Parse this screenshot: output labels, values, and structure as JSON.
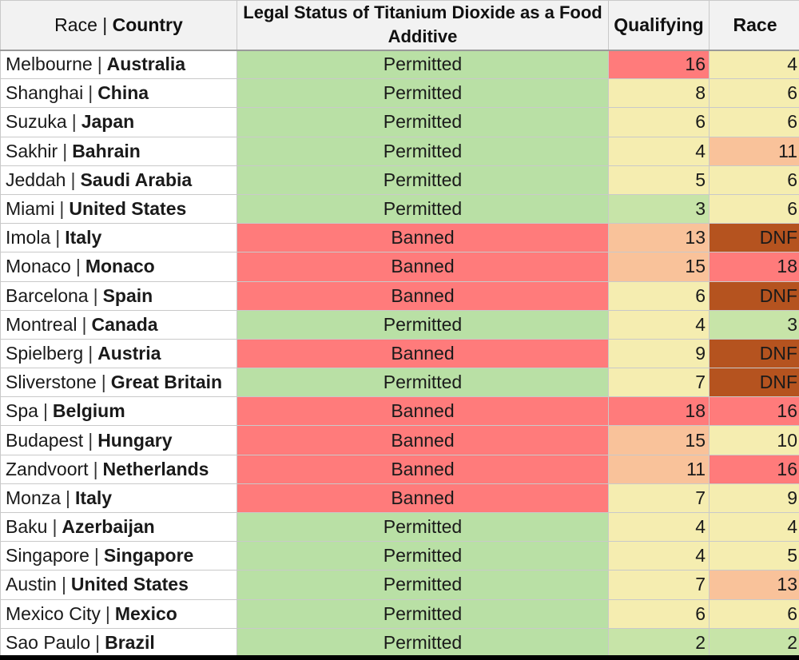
{
  "colors": {
    "permitted": "#b9e0a5",
    "banned": "#ff7b7b",
    "scale": {
      "1": "#c7e4a8",
      "2": "#c7e4a8",
      "3": "#c7e4a8",
      "4": "#f5edb0",
      "5": "#f5edb0",
      "6": "#f5edb0",
      "7": "#f5edb0",
      "8": "#f5edb0",
      "9": "#f5edb0",
      "10": "#f5edb0",
      "11": "#f9c29a",
      "12": "#f9c29a",
      "13": "#f9c29a",
      "14": "#f9c29a",
      "15": "#f9c29a",
      "16": "#ff7b7b",
      "17": "#ff7b7b",
      "18": "#ff7b7b",
      "19": "#ff7b7b",
      "20": "#ff7b7b",
      "DNF": "#b5531f"
    }
  },
  "chart_data": {
    "type": "table",
    "columns": {
      "race_part": "Race",
      "separator": "|",
      "country_part": "Country",
      "legal": "Legal Status of Titanium Dioxide as a Food Additive",
      "qualifying": "Qualifying",
      "race": "Race"
    },
    "rows": [
      {
        "city": "Melbourne",
        "country": "Australia",
        "status": "Permitted",
        "qualifying": "16",
        "race": "4"
      },
      {
        "city": "Shanghai",
        "country": "China",
        "status": "Permitted",
        "qualifying": "8",
        "race": "6"
      },
      {
        "city": "Suzuka",
        "country": "Japan",
        "status": "Permitted",
        "qualifying": "6",
        "race": "6"
      },
      {
        "city": "Sakhir",
        "country": "Bahrain",
        "status": "Permitted",
        "qualifying": "4",
        "race": "11"
      },
      {
        "city": "Jeddah",
        "country": "Saudi Arabia",
        "status": "Permitted",
        "qualifying": "5",
        "race": "6"
      },
      {
        "city": "Miami",
        "country": "United States",
        "status": "Permitted",
        "qualifying": "3",
        "race": "6"
      },
      {
        "city": "Imola",
        "country": "Italy",
        "status": "Banned",
        "qualifying": "13",
        "race": "DNF"
      },
      {
        "city": "Monaco",
        "country": "Monaco",
        "status": "Banned",
        "qualifying": "15",
        "race": "18"
      },
      {
        "city": "Barcelona",
        "country": "Spain",
        "status": "Banned",
        "qualifying": "6",
        "race": "DNF"
      },
      {
        "city": "Montreal",
        "country": "Canada",
        "status": "Permitted",
        "qualifying": "4",
        "race": "3"
      },
      {
        "city": "Spielberg",
        "country": "Austria",
        "status": "Banned",
        "qualifying": "9",
        "race": "DNF"
      },
      {
        "city": "Sliverstone",
        "country": "Great Britain",
        "status": "Permitted",
        "qualifying": "7",
        "race": "DNF"
      },
      {
        "city": "Spa",
        "country": "Belgium",
        "status": "Banned",
        "qualifying": "18",
        "race": "16"
      },
      {
        "city": "Budapest",
        "country": "Hungary",
        "status": "Banned",
        "qualifying": "15",
        "race": "10"
      },
      {
        "city": "Zandvoort",
        "country": "Netherlands",
        "status": "Banned",
        "qualifying": "11",
        "race": "16"
      },
      {
        "city": "Monza",
        "country": "Italy",
        "status": "Banned",
        "qualifying": "7",
        "race": "9"
      },
      {
        "city": "Baku",
        "country": "Azerbaijan",
        "status": "Permitted",
        "qualifying": "4",
        "race": "4"
      },
      {
        "city": "Singapore",
        "country": "Singapore",
        "status": "Permitted",
        "qualifying": "4",
        "race": "5"
      },
      {
        "city": "Austin",
        "country": "United States",
        "status": "Permitted",
        "qualifying": "7",
        "race": "13"
      },
      {
        "city": "Mexico City",
        "country": "Mexico",
        "status": "Permitted",
        "qualifying": "6",
        "race": "6"
      },
      {
        "city": "Sao Paulo",
        "country": "Brazil",
        "status": "Permitted",
        "qualifying": "2",
        "race": "2"
      }
    ]
  }
}
